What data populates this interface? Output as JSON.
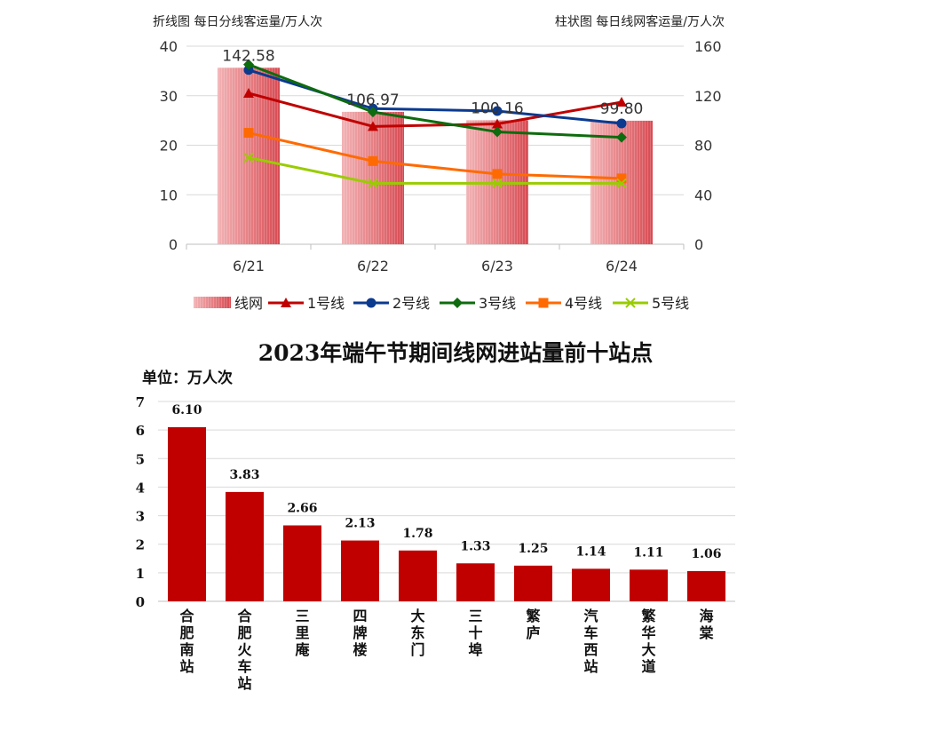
{
  "chart_data": [
    {
      "type": "bar",
      "left_axis_title": "折线图 每日分线客运量/万人次",
      "right_axis_title": "柱状图 每日线网客运量/万人次",
      "categories": [
        "6/21",
        "6/22",
        "6/23",
        "6/24"
      ],
      "left_ylim": [
        0,
        40
      ],
      "left_ticks": [
        0,
        10,
        20,
        30,
        40
      ],
      "right_ylim": [
        0,
        160
      ],
      "right_ticks": [
        0,
        40,
        80,
        120,
        160
      ],
      "bar_series": {
        "name": "线网",
        "axis": "right",
        "values": [
          142.58,
          106.97,
          100.16,
          99.8
        ],
        "labels": [
          "142.58",
          "106.97",
          "100.16",
          "99.80"
        ],
        "color": "#e06a6e"
      },
      "line_series": [
        {
          "name": "1号线",
          "marker": "triangle",
          "color": "#c00000",
          "values": [
            30.5,
            23.8,
            24.3,
            28.7
          ]
        },
        {
          "name": "2号线",
          "marker": "circle",
          "color": "#0b3a8f",
          "values": [
            35.2,
            27.4,
            26.9,
            24.4
          ]
        },
        {
          "name": "3号线",
          "marker": "diamond",
          "color": "#0e6b0e",
          "values": [
            36.3,
            26.7,
            22.7,
            21.6
          ]
        },
        {
          "name": "4号线",
          "marker": "square",
          "color": "#ff6a00",
          "values": [
            22.5,
            16.8,
            14.2,
            13.3
          ]
        },
        {
          "name": "5号线",
          "marker": "x",
          "color": "#99cc00",
          "values": [
            17.5,
            12.3,
            12.3,
            12.3
          ]
        }
      ],
      "legend_position": "bottom",
      "grid": true
    },
    {
      "type": "bar",
      "title": "2023年端午节期间线网进站量前十站点",
      "unit_label": "单位：万人次",
      "categories": [
        "合肥南站",
        "合肥火车站",
        "三里庵",
        "四牌楼",
        "大东门",
        "三十埠",
        "繁庐",
        "汽车西站",
        "繁华大道",
        "海棠"
      ],
      "values": [
        6.1,
        3.83,
        2.66,
        2.13,
        1.78,
        1.33,
        1.25,
        1.14,
        1.11,
        1.06
      ],
      "labels": [
        "6.10",
        "3.83",
        "2.66",
        "2.13",
        "1.78",
        "1.33",
        "1.25",
        "1.14",
        "1.11",
        "1.06"
      ],
      "ylim": [
        0,
        7
      ],
      "ticks": [
        0,
        1,
        2,
        3,
        4,
        5,
        6,
        7
      ],
      "color": "#c00000",
      "grid": true
    }
  ]
}
